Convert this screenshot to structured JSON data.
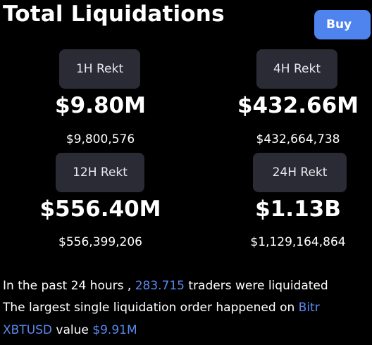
{
  "header": {
    "title": "Total Liquidations",
    "buy_label": "Buy"
  },
  "cards": [
    {
      "label": "1H Rekt",
      "amount": "$9.80M",
      "exact": "$9,800,576"
    },
    {
      "label": "4H Rekt",
      "amount": "$432.66M",
      "exact": "$432,664,738"
    },
    {
      "label": "12H Rekt",
      "amount": "$556.40M",
      "exact": "$556,399,206"
    },
    {
      "label": "24H Rekt",
      "amount": "$1.13B",
      "exact": "$1,129,164,864"
    }
  ],
  "summary": {
    "line1_prefix": "In the past 24 hours , ",
    "line1_traders": "283.715",
    "line1_suffix": " traders were liquidated",
    "line2_prefix": "The largest single liquidation order happened on ",
    "line2_exchange": "Bitr",
    "line3_symbol": "XBTUSD",
    "line3_mid": " value ",
    "line3_value": "$9.91M"
  },
  "colors": {
    "background": "#000000",
    "accent": "#5b8af0",
    "button": "#4f84ee",
    "pill": "#2a2b34"
  }
}
